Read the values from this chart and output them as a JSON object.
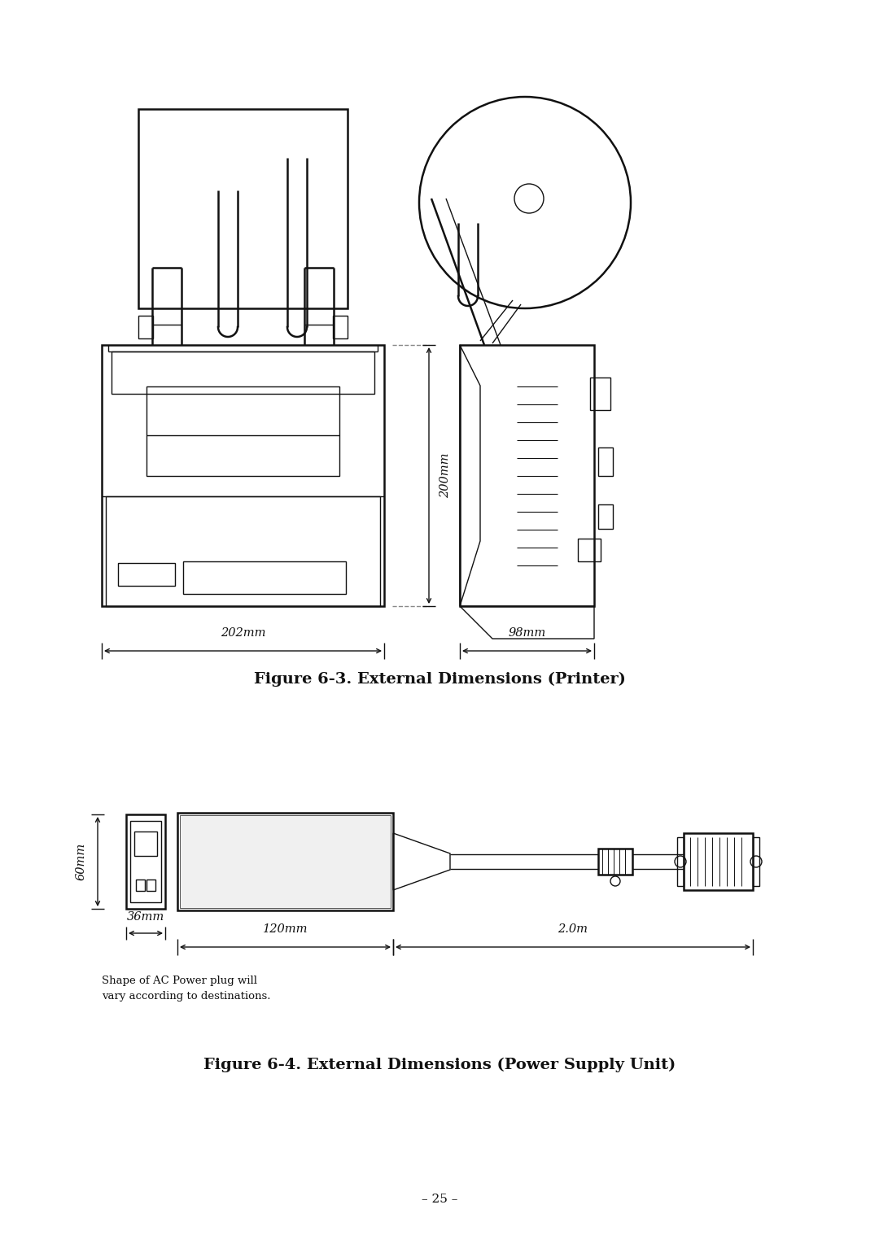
{
  "bg_color": "#ffffff",
  "line_color": "#111111",
  "fig_width": 10.8,
  "fig_height": 15.29,
  "fig3_title": "Figure 6-3. External Dimensions (Printer)",
  "fig4_title": "Figure 6-4. External Dimensions (Power Supply Unit)",
  "dim_202": "202mm",
  "dim_98": "98mm",
  "dim_200": "200mm",
  "dim_60": "60mm",
  "dim_36": "36mm",
  "dim_120": "120mm",
  "dim_2m": "2.0m",
  "note_text": "Shape of AC Power plug will\nvary according to destinations.",
  "page_num": "– 25 –",
  "title_fontsize": 14,
  "label_fontsize": 10.5,
  "note_fontsize": 9.5,
  "page_fontsize": 11
}
